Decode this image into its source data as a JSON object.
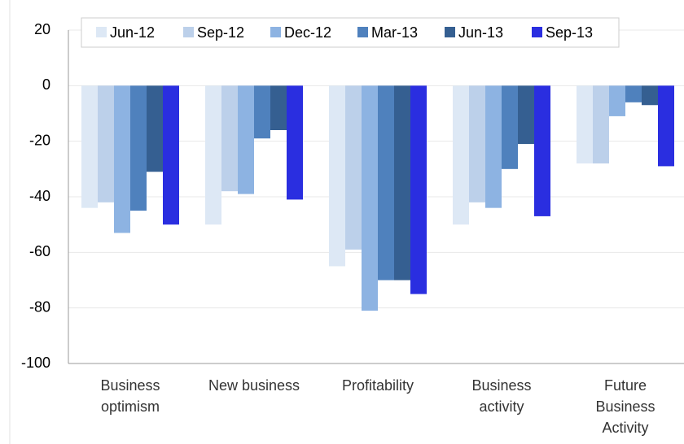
{
  "chart_data": {
    "type": "bar",
    "categories": [
      "Business optimism",
      "New business",
      "Profitability",
      "Business activity",
      "Future Business Activity"
    ],
    "series": [
      {
        "name": "Jun-12",
        "color": "#dde8f5",
        "values": [
          -44,
          -50,
          -65,
          -50,
          -28
        ]
      },
      {
        "name": "Sep-12",
        "color": "#bcd0ea",
        "values": [
          -42,
          -38,
          -59,
          -42,
          -28
        ]
      },
      {
        "name": "Dec-12",
        "color": "#8db3e2",
        "values": [
          -53,
          -39,
          -81,
          -44,
          -11
        ]
      },
      {
        "name": "Mar-13",
        "color": "#4f81bd",
        "values": [
          -45,
          -19,
          -70,
          -30,
          -6
        ]
      },
      {
        "name": "Jun-13",
        "color": "#355f91",
        "values": [
          -31,
          -16,
          -70,
          -21,
          -7
        ]
      },
      {
        "name": "Sep-13",
        "color": "#2a2ee0",
        "values": [
          -50,
          -41,
          -75,
          -47,
          -29
        ]
      }
    ],
    "ylim": [
      -100,
      20
    ],
    "yticks": [
      -100,
      -80,
      -60,
      -40,
      -20,
      0,
      20
    ],
    "grid": true,
    "legend": "top"
  }
}
